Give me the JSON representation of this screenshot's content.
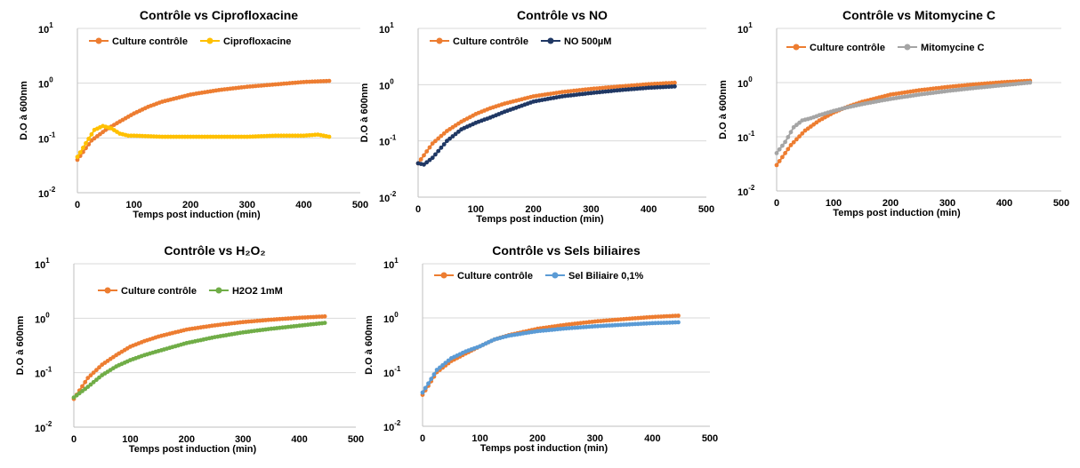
{
  "colors": {
    "control": "#ED7D31",
    "ciprofloxacine": "#FFC000",
    "no": "#203864",
    "mitomycine": "#A5A5A5",
    "h2o2": "#70AD47",
    "sels": "#5B9BD5"
  },
  "chart_data": [
    {
      "type": "line",
      "title": "Contrôle vs Ciprofloxacine",
      "xlabel": "Temps post induction (min)",
      "ylabel": "D.O à 600nm",
      "yscale": "log",
      "xlim": [
        0,
        500
      ],
      "ylim": [
        0.01,
        10
      ],
      "xticks": [
        "0",
        "100",
        "200",
        "300",
        "400",
        "500"
      ],
      "yticks": [
        {
          "base": "10",
          "exp": "1"
        },
        {
          "base": "10",
          "exp": "0"
        },
        {
          "base": "10",
          "exp": "-1"
        },
        {
          "base": "10",
          "exp": "-2"
        }
      ],
      "grid": true,
      "legend": "top-left",
      "series": [
        {
          "name": "Culture contrôle",
          "color": "#ED7D31",
          "x": [
            0,
            25,
            50,
            75,
            100,
            125,
            150,
            200,
            250,
            300,
            350,
            400,
            445
          ],
          "y": [
            0.04,
            0.09,
            0.14,
            0.2,
            0.28,
            0.37,
            0.46,
            0.62,
            0.75,
            0.86,
            0.95,
            1.05,
            1.1
          ]
        },
        {
          "name": "Ciprofloxacine",
          "color": "#FFC000",
          "x": [
            0,
            15,
            30,
            45,
            60,
            75,
            90,
            100,
            150,
            200,
            250,
            300,
            350,
            400,
            425,
            445
          ],
          "y": [
            0.045,
            0.08,
            0.14,
            0.165,
            0.15,
            0.12,
            0.11,
            0.11,
            0.105,
            0.105,
            0.105,
            0.105,
            0.11,
            0.11,
            0.115,
            0.105
          ]
        }
      ]
    },
    {
      "type": "line",
      "title": "Contrôle vs NO",
      "xlabel": "Temps post induction (min)",
      "ylabel": "D.O à 600nm",
      "yscale": "log",
      "xlim": [
        0,
        500
      ],
      "ylim": [
        0.01,
        10
      ],
      "xticks": [
        "0",
        "100",
        "200",
        "300",
        "400",
        "500"
      ],
      "yticks": [
        {
          "base": "10",
          "exp": "1"
        },
        {
          "base": "10",
          "exp": "0"
        },
        {
          "base": "10",
          "exp": "-1"
        },
        {
          "base": "10",
          "exp": "-2"
        }
      ],
      "grid": true,
      "legend": "top-left",
      "series": [
        {
          "name": "Culture contrôle",
          "color": "#ED7D31",
          "x": [
            0,
            25,
            50,
            75,
            100,
            125,
            150,
            200,
            250,
            300,
            350,
            400,
            445
          ],
          "y": [
            0.04,
            0.09,
            0.15,
            0.22,
            0.3,
            0.38,
            0.46,
            0.62,
            0.74,
            0.84,
            0.93,
            1.02,
            1.08
          ]
        },
        {
          "name": "NO 500µM",
          "color": "#203864",
          "x": [
            0,
            10,
            25,
            50,
            75,
            100,
            125,
            150,
            200,
            250,
            300,
            350,
            400,
            445
          ],
          "y": [
            0.04,
            0.038,
            0.05,
            0.1,
            0.16,
            0.21,
            0.26,
            0.33,
            0.5,
            0.62,
            0.71,
            0.8,
            0.88,
            0.93
          ]
        }
      ]
    },
    {
      "type": "line",
      "title": "Contrôle vs Mitomycine C",
      "xlabel": "Temps post induction (min)",
      "ylabel": "D.O à 600nm",
      "yscale": "log",
      "xlim": [
        0,
        500
      ],
      "ylim": [
        0.01,
        10
      ],
      "xticks": [
        "0",
        "100",
        "200",
        "300",
        "400",
        "500"
      ],
      "yticks": [
        {
          "base": "10",
          "exp": "1"
        },
        {
          "base": "10",
          "exp": "0"
        },
        {
          "base": "10",
          "exp": "-1"
        },
        {
          "base": "10",
          "exp": "-2"
        }
      ],
      "grid": true,
      "legend": "top-left",
      "series": [
        {
          "name": "Culture contrôle",
          "color": "#ED7D31",
          "x": [
            0,
            25,
            50,
            75,
            100,
            125,
            150,
            200,
            250,
            300,
            350,
            400,
            445
          ],
          "y": [
            0.03,
            0.07,
            0.13,
            0.2,
            0.28,
            0.36,
            0.44,
            0.6,
            0.72,
            0.83,
            0.93,
            1.02,
            1.08
          ]
        },
        {
          "name": "Mitomycine C",
          "color": "#A5A5A5",
          "x": [
            0,
            15,
            30,
            45,
            60,
            75,
            100,
            125,
            150,
            200,
            250,
            300,
            350,
            400,
            445
          ],
          "y": [
            0.05,
            0.08,
            0.15,
            0.2,
            0.22,
            0.25,
            0.3,
            0.35,
            0.4,
            0.5,
            0.6,
            0.7,
            0.8,
            0.9,
            1.0
          ]
        }
      ]
    },
    {
      "type": "line",
      "title": "Contrôle vs H₂O₂",
      "xlabel": "Temps post induction (min)",
      "ylabel": "D.O à 600nm",
      "yscale": "log",
      "xlim": [
        0,
        500
      ],
      "ylim": [
        0.01,
        10
      ],
      "xticks": [
        "0",
        "100",
        "200",
        "300",
        "400",
        "500"
      ],
      "yticks": [
        {
          "base": "10",
          "exp": "1"
        },
        {
          "base": "10",
          "exp": "0"
        },
        {
          "base": "10",
          "exp": "-1"
        },
        {
          "base": "10",
          "exp": "-2"
        }
      ],
      "grid": true,
      "legend": "top-left",
      "series": [
        {
          "name": "Culture contrôle",
          "color": "#ED7D31",
          "x": [
            0,
            25,
            50,
            75,
            100,
            125,
            150,
            200,
            250,
            300,
            350,
            400,
            445
          ],
          "y": [
            0.033,
            0.08,
            0.14,
            0.21,
            0.3,
            0.38,
            0.46,
            0.62,
            0.74,
            0.85,
            0.94,
            1.02,
            1.08
          ]
        },
        {
          "name": "H2O2 1mM",
          "color": "#70AD47",
          "x": [
            0,
            25,
            50,
            75,
            100,
            125,
            150,
            200,
            250,
            300,
            350,
            400,
            445
          ],
          "y": [
            0.035,
            0.055,
            0.09,
            0.13,
            0.17,
            0.21,
            0.25,
            0.35,
            0.45,
            0.55,
            0.64,
            0.73,
            0.82
          ]
        }
      ]
    },
    {
      "type": "line",
      "title": "Contrôle vs Sels biliaires",
      "xlabel": "Temps post induction (min)",
      "ylabel": "D.O à 600nm",
      "yscale": "log",
      "xlim": [
        0,
        500
      ],
      "ylim": [
        0.01,
        10
      ],
      "xticks": [
        "0",
        "100",
        "200",
        "300",
        "400",
        "500"
      ],
      "yticks": [
        {
          "base": "10",
          "exp": "1"
        },
        {
          "base": "10",
          "exp": "0"
        },
        {
          "base": "10",
          "exp": "-1"
        },
        {
          "base": "10",
          "exp": "-2"
        }
      ],
      "grid": true,
      "legend": "top-left",
      "series": [
        {
          "name": "Culture contrôle",
          "color": "#ED7D31",
          "x": [
            0,
            25,
            50,
            75,
            100,
            125,
            150,
            200,
            250,
            300,
            350,
            400,
            445
          ],
          "y": [
            0.038,
            0.1,
            0.16,
            0.22,
            0.3,
            0.4,
            0.48,
            0.63,
            0.75,
            0.86,
            0.95,
            1.04,
            1.1
          ]
        },
        {
          "name": "Sel Biliaire 0,1%",
          "color": "#5B9BD5",
          "x": [
            0,
            25,
            50,
            75,
            100,
            125,
            150,
            200,
            250,
            300,
            350,
            400,
            445
          ],
          "y": [
            0.042,
            0.11,
            0.18,
            0.24,
            0.3,
            0.4,
            0.47,
            0.57,
            0.64,
            0.7,
            0.75,
            0.8,
            0.83
          ]
        }
      ]
    }
  ]
}
